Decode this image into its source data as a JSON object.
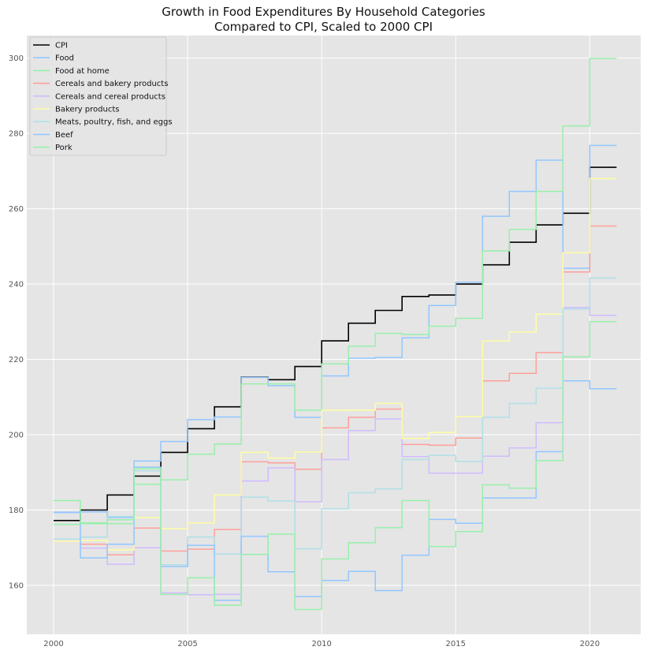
{
  "chart_data": {
    "type": "line",
    "step": "post",
    "title": "Growth in Food Expenditures By Household Categories",
    "subtitle": "Compared to CPI, Scaled to 2000 CPI",
    "xlabel": "",
    "ylabel": "",
    "xlim": [
      1999.0,
      2021.9
    ],
    "ylim": [
      147,
      306
    ],
    "xticks": [
      2000,
      2005,
      2010,
      2015,
      2020
    ],
    "yticks": [
      160,
      180,
      200,
      220,
      240,
      260,
      280,
      300
    ],
    "grid": true,
    "legend_position": "top-left",
    "x": [
      2000,
      2001,
      2002,
      2003,
      2004,
      2005,
      2006,
      2007,
      2008,
      2009,
      2010,
      2011,
      2012,
      2013,
      2014,
      2015,
      2016,
      2017,
      2018,
      2019,
      2020,
      2021
    ],
    "series": [
      {
        "name": "CPI",
        "color": "#000000",
        "values": [
          177.2,
          180.0,
          184.0,
          189.0,
          195.3,
          201.6,
          207.4,
          215.3,
          214.6,
          218.1,
          224.9,
          229.6,
          233.0,
          236.7,
          237.1,
          240.0,
          245.1,
          251.1,
          255.7,
          258.8,
          271.0,
          271.0
        ]
      },
      {
        "name": "Food",
        "color": "#92c6ff",
        "values": [
          179.3,
          179.5,
          178.0,
          193.0,
          198.2,
          204.0,
          204.7,
          215.2,
          213.0,
          204.6,
          215.6,
          220.3,
          220.5,
          225.7,
          234.3,
          240.5,
          258.0,
          264.6,
          272.9,
          244.2,
          276.8,
          276.8
        ]
      },
      {
        "name": "Food at home",
        "color": "#97f0aa",
        "values": [
          176.2,
          176.6,
          176.4,
          186.8,
          188.0,
          194.8,
          197.5,
          213.5,
          213.5,
          206.5,
          218.8,
          223.5,
          226.9,
          226.6,
          228.8,
          230.9,
          248.8,
          254.5,
          264.6,
          282.0,
          299.9,
          299.9
        ]
      },
      {
        "name": "Cereals and bakery products",
        "color": "#ff9f9a",
        "values": [
          172.3,
          170.9,
          168.1,
          175.2,
          169.1,
          169.6,
          174.8,
          192.8,
          192.5,
          190.8,
          201.8,
          204.6,
          206.8,
          197.4,
          197.2,
          199.1,
          214.3,
          216.3,
          221.8,
          243.2,
          255.4,
          255.4
        ]
      },
      {
        "name": "Cereals and cereal products",
        "color": "#d0bbff",
        "values": [
          171.7,
          169.9,
          165.6,
          170.0,
          158.0,
          157.5,
          157.6,
          187.7,
          191.2,
          182.2,
          193.4,
          201.1,
          204.2,
          194.2,
          189.8,
          189.8,
          194.3,
          196.5,
          203.2,
          233.8,
          231.7,
          231.7
        ]
      },
      {
        "name": "Bakery products",
        "color": "#fffea3",
        "values": [
          171.7,
          171.9,
          169.4,
          178.0,
          175.0,
          176.6,
          184.0,
          195.3,
          193.8,
          195.4,
          206.5,
          206.5,
          208.3,
          199.0,
          200.6,
          204.8,
          224.9,
          227.3,
          232.0,
          248.3,
          268.0,
          268.0
        ]
      },
      {
        "name": "Meats, poultry, fish, and eggs",
        "color": "#b0e0e6",
        "values": [
          172.3,
          172.8,
          178.3,
          190.4,
          165.5,
          172.8,
          168.3,
          183.4,
          182.4,
          169.7,
          180.3,
          184.6,
          185.6,
          193.4,
          194.5,
          192.9,
          204.6,
          208.3,
          212.3,
          233.4,
          241.6,
          241.6
        ]
      },
      {
        "name": "Beef",
        "color": "#92c6ff",
        "values": [
          179.4,
          167.3,
          170.9,
          191.4,
          165.0,
          170.6,
          156.0,
          173.0,
          163.6,
          157.0,
          161.3,
          163.7,
          158.6,
          168.0,
          177.5,
          176.5,
          183.2,
          183.2,
          195.5,
          214.3,
          212.2,
          212.2
        ]
      },
      {
        "name": "Pork",
        "color": "#97f0aa",
        "values": [
          182.5,
          176.4,
          177.4,
          191.0,
          157.6,
          162.0,
          154.7,
          168.2,
          173.6,
          153.6,
          167.0,
          171.3,
          175.3,
          182.5,
          170.3,
          174.3,
          186.7,
          185.8,
          193.1,
          220.7,
          230.0,
          230.0
        ]
      }
    ]
  }
}
